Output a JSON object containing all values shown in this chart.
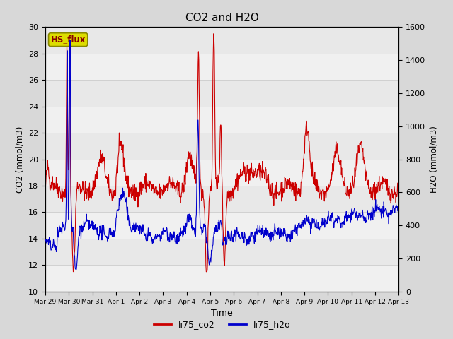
{
  "title": "CO2 and H2O",
  "xlabel": "Time",
  "ylabel_left": "CO2 (mmol/m3)",
  "ylabel_right": "H2O (mmol/m3)",
  "ylim_left": [
    10,
    30
  ],
  "ylim_right": [
    0,
    1600
  ],
  "yticks_left": [
    10,
    12,
    14,
    16,
    18,
    20,
    22,
    24,
    26,
    28,
    30
  ],
  "yticks_right": [
    0,
    200,
    400,
    600,
    800,
    1000,
    1200,
    1400,
    1600
  ],
  "xtick_labels": [
    "Mar 29",
    "Mar 30",
    "Mar 31",
    "Apr 1",
    "Apr 2",
    "Apr 3",
    "Apr 4",
    "Apr 5",
    "Apr 6",
    "Apr 7",
    "Apr 8",
    "Apr 9",
    "Apr 10",
    "Apr 11",
    "Apr 12",
    "Apr 13"
  ],
  "co2_color": "#cc0000",
  "h2o_color": "#0000cc",
  "fig_bg": "#d8d8d8",
  "plot_bg": "#e8e8e8",
  "band_light": "#f0f0f0",
  "label_box_color": "#dddd00",
  "label_box_edge": "#888800",
  "label_box_text": "HS_flux",
  "legend_co2": "li75_co2",
  "legend_h2o": "li75_h2o",
  "linewidth": 0.8,
  "n_points": 1000
}
